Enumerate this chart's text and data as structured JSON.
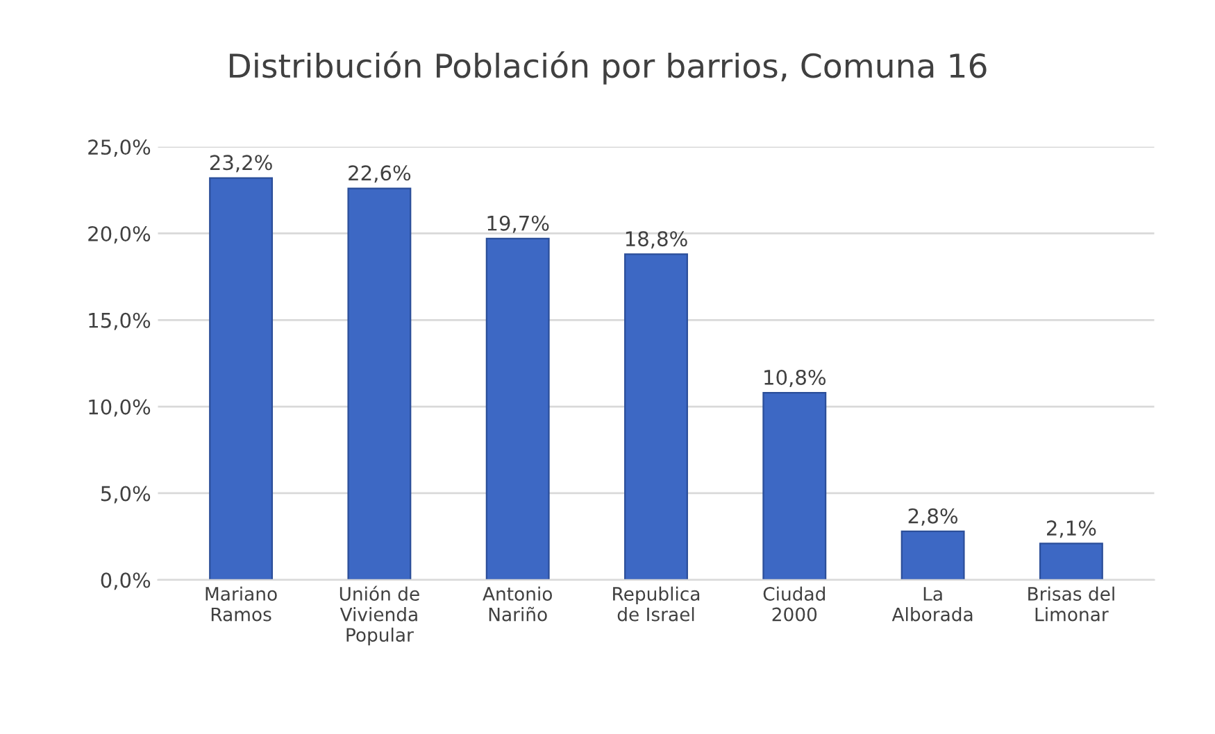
{
  "chart_data": {
    "type": "bar",
    "title": "Distribución Población por barrios, Comuna 16",
    "categories": [
      "Mariano\nRamos",
      "Unión de\nVivienda\nPopular",
      "Antonio\nNariño",
      "Republica\nde Israel",
      "Ciudad\n2000",
      "La\nAlborada",
      "Brisas del\nLimonar"
    ],
    "values": [
      23.2,
      22.6,
      19.7,
      18.8,
      10.8,
      2.8,
      2.1
    ],
    "value_labels": [
      "23,2%",
      "22,6%",
      "19,7%",
      "18,8%",
      "10,8%",
      "2,8%",
      "2,1%"
    ],
    "color": "#3d68c4",
    "ylim": [
      0,
      25
    ],
    "yticks": [
      {
        "value": 0,
        "label": "0,0%"
      },
      {
        "value": 5,
        "label": "5,0%"
      },
      {
        "value": 10,
        "label": "10,0%"
      },
      {
        "value": 15,
        "label": "15,0%"
      },
      {
        "value": 20,
        "label": "20,0%"
      },
      {
        "value": 25,
        "label": "25,0%"
      }
    ],
    "grid": "y"
  }
}
